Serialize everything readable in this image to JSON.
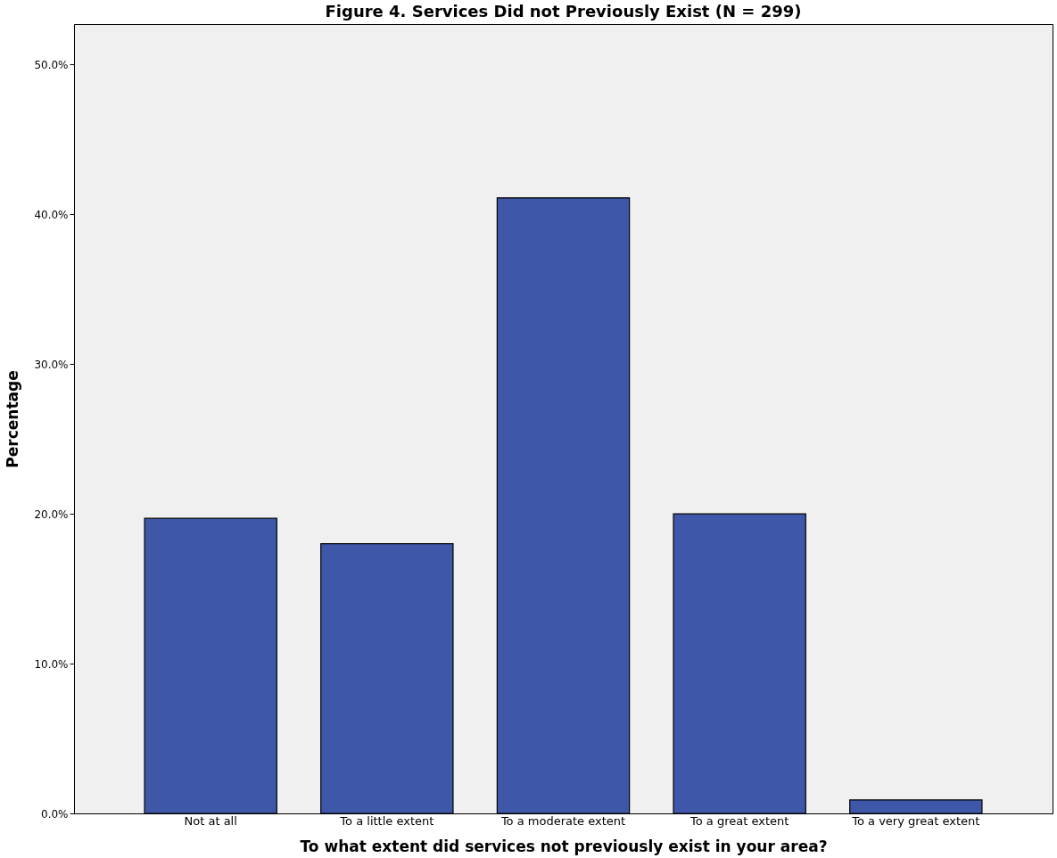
{
  "chart_data": {
    "type": "bar",
    "title": "Figure 4. Services Did not Previously Exist (N = 299)",
    "xlabel": "To what extent did services not previously exist in your area?",
    "ylabel": "Percentage",
    "categories": [
      "Not at all",
      "To a little extent",
      "To a moderate extent",
      "To a great extent",
      "To a very great extent"
    ],
    "values": [
      19.7,
      18.0,
      41.1,
      20.0,
      0.9
    ],
    "color": "#3f57a8",
    "ylim": [
      0,
      52.7
    ],
    "yticks": [
      {
        "value": 0,
        "label": "0.0%"
      },
      {
        "value": 10,
        "label": "10.0%"
      },
      {
        "value": 20,
        "label": "20.0%"
      },
      {
        "value": 30,
        "label": "30.0%"
      },
      {
        "value": 40,
        "label": "40.0%"
      },
      {
        "value": 50,
        "label": "50.0%"
      }
    ],
    "grid": false
  }
}
